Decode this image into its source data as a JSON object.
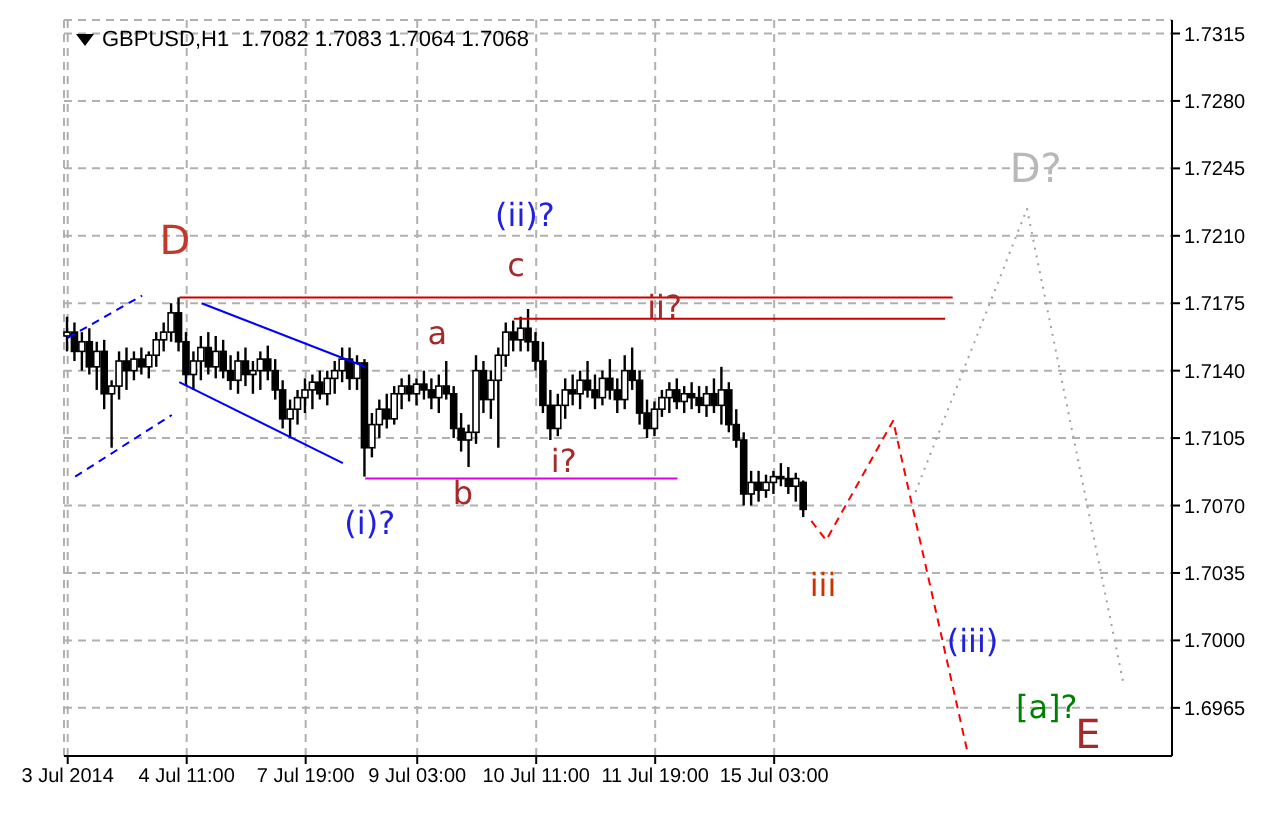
{
  "chart_data": {
    "type": "candlestick",
    "title": "GBPUSD,H1  1.7082 1.7083 1.7064 1.7068",
    "categories": [
      "3 Jul 2014",
      null,
      null,
      null,
      null,
      null,
      null,
      null,
      null,
      null,
      null,
      null,
      null,
      null,
      null,
      null,
      "4 Jul 11:00",
      null,
      null,
      null,
      null,
      null,
      null,
      null,
      null,
      null,
      null,
      null,
      null,
      null,
      null,
      null,
      "7 Jul 19:00",
      null,
      null,
      null,
      null,
      null,
      null,
      null,
      null,
      null,
      null,
      null,
      null,
      null,
      null,
      "9 Jul 03:00",
      null,
      null,
      null,
      null,
      null,
      null,
      null,
      null,
      null,
      null,
      null,
      null,
      null,
      null,
      null,
      "10 Jul 11:00",
      null,
      null,
      null,
      null,
      null,
      null,
      null,
      null,
      null,
      null,
      null,
      null,
      null,
      null,
      null,
      "11 Jul 19:00",
      null,
      null,
      null,
      null,
      null,
      null,
      null,
      null,
      null,
      null,
      null,
      null,
      null,
      null,
      null,
      "15 Jul 03:00",
      null,
      null,
      null,
      null,
      null,
      null,
      null,
      null,
      null,
      null,
      null,
      null,
      null,
      null,
      null,
      null,
      null,
      null,
      null,
      null,
      null,
      null,
      null,
      null,
      null,
      null,
      null,
      null,
      null,
      null,
      null,
      null,
      null,
      null,
      null,
      null,
      null,
      null,
      null,
      null,
      null,
      null,
      null,
      null,
      null,
      null,
      null,
      null,
      null,
      null,
      null,
      null,
      null
    ],
    "ohlc": [
      [
        1.7158,
        1.7168,
        1.715,
        1.716
      ],
      [
        1.716,
        1.7165,
        1.7145,
        1.715
      ],
      [
        1.715,
        1.716,
        1.714,
        1.7155
      ],
      [
        1.7155,
        1.7162,
        1.7138,
        1.7142
      ],
      [
        1.7142,
        1.7155,
        1.713,
        1.715
      ],
      [
        1.715,
        1.7156,
        1.712,
        1.7128
      ],
      [
        1.7128,
        1.7135,
        1.71,
        1.7132
      ],
      [
        1.7132,
        1.715,
        1.7125,
        1.7145
      ],
      [
        1.7145,
        1.7152,
        1.713,
        1.714
      ],
      [
        1.714,
        1.715,
        1.7135,
        1.7146
      ],
      [
        1.7146,
        1.7152,
        1.7138,
        1.7142
      ],
      [
        1.7142,
        1.715,
        1.7136,
        1.7148
      ],
      [
        1.7148,
        1.716,
        1.7142,
        1.7156
      ],
      [
        1.7156,
        1.7165,
        1.715,
        1.716
      ],
      [
        1.716,
        1.7175,
        1.7155,
        1.717
      ],
      [
        1.717,
        1.7178,
        1.715,
        1.7155
      ],
      [
        1.7155,
        1.716,
        1.7132,
        1.7138
      ],
      [
        1.7138,
        1.715,
        1.713,
        1.7145
      ],
      [
        1.7145,
        1.7158,
        1.7135,
        1.7152
      ],
      [
        1.7152,
        1.716,
        1.7138,
        1.7142
      ],
      [
        1.7142,
        1.7158,
        1.7136,
        1.715
      ],
      [
        1.715,
        1.7156,
        1.7136,
        1.714
      ],
      [
        1.714,
        1.7148,
        1.713,
        1.7135
      ],
      [
        1.7135,
        1.715,
        1.7128,
        1.7145
      ],
      [
        1.7145,
        1.7152,
        1.7132,
        1.7138
      ],
      [
        1.7138,
        1.7145,
        1.7128,
        1.714
      ],
      [
        1.714,
        1.715,
        1.713,
        1.7146
      ],
      [
        1.7146,
        1.7153,
        1.7135,
        1.714
      ],
      [
        1.714,
        1.7146,
        1.7125,
        1.713
      ],
      [
        1.713,
        1.7135,
        1.711,
        1.7115
      ],
      [
        1.7115,
        1.7125,
        1.7105,
        1.712
      ],
      [
        1.712,
        1.713,
        1.7112,
        1.7126
      ],
      [
        1.7126,
        1.7136,
        1.7118,
        1.713
      ],
      [
        1.713,
        1.7138,
        1.712,
        1.7134
      ],
      [
        1.7134,
        1.714,
        1.7125,
        1.7128
      ],
      [
        1.7128,
        1.714,
        1.7122,
        1.7136
      ],
      [
        1.7136,
        1.7145,
        1.7128,
        1.714
      ],
      [
        1.714,
        1.7152,
        1.7134,
        1.7146
      ],
      [
        1.7146,
        1.7152,
        1.713,
        1.7136
      ],
      [
        1.7136,
        1.7148,
        1.713,
        1.7144
      ],
      [
        1.7144,
        1.7146,
        1.7085,
        1.71
      ],
      [
        1.71,
        1.7118,
        1.7095,
        1.7112
      ],
      [
        1.7112,
        1.7125,
        1.7105,
        1.712
      ],
      [
        1.712,
        1.7128,
        1.711,
        1.7115
      ],
      [
        1.7115,
        1.7132,
        1.7112,
        1.7128
      ],
      [
        1.7128,
        1.7136,
        1.712,
        1.7132
      ],
      [
        1.7132,
        1.7138,
        1.7124,
        1.7128
      ],
      [
        1.7128,
        1.7136,
        1.7122,
        1.7133
      ],
      [
        1.7133,
        1.714,
        1.7125,
        1.713
      ],
      [
        1.713,
        1.7136,
        1.712,
        1.7126
      ],
      [
        1.7126,
        1.7138,
        1.7118,
        1.7132
      ],
      [
        1.7132,
        1.7145,
        1.7125,
        1.7128
      ],
      [
        1.7128,
        1.7132,
        1.7105,
        1.711
      ],
      [
        1.711,
        1.7118,
        1.7098,
        1.7104
      ],
      [
        1.7104,
        1.7112,
        1.709,
        1.7108
      ],
      [
        1.7108,
        1.7148,
        1.7102,
        1.714
      ],
      [
        1.714,
        1.7145,
        1.7118,
        1.7125
      ],
      [
        1.7125,
        1.714,
        1.7115,
        1.7135
      ],
      [
        1.7135,
        1.7152,
        1.71,
        1.7148
      ],
      [
        1.7148,
        1.7165,
        1.7142,
        1.716
      ],
      [
        1.716,
        1.7166,
        1.715,
        1.7156
      ],
      [
        1.7156,
        1.7168,
        1.715,
        1.7162
      ],
      [
        1.7162,
        1.7172,
        1.715,
        1.7155
      ],
      [
        1.7155,
        1.716,
        1.714,
        1.7145
      ],
      [
        1.7145,
        1.7155,
        1.7118,
        1.7122
      ],
      [
        1.7122,
        1.713,
        1.7104,
        1.711
      ],
      [
        1.711,
        1.7128,
        1.7106,
        1.7122
      ],
      [
        1.7122,
        1.7136,
        1.7115,
        1.713
      ],
      [
        1.713,
        1.7138,
        1.7122,
        1.7128
      ],
      [
        1.7128,
        1.714,
        1.712,
        1.7135
      ],
      [
        1.7135,
        1.7145,
        1.7126,
        1.713
      ],
      [
        1.713,
        1.7138,
        1.712,
        1.7126
      ],
      [
        1.7126,
        1.714,
        1.7122,
        1.7136
      ],
      [
        1.7136,
        1.7146,
        1.7125,
        1.713
      ],
      [
        1.713,
        1.7136,
        1.7118,
        1.7125
      ],
      [
        1.7125,
        1.7148,
        1.712,
        1.714
      ],
      [
        1.714,
        1.7152,
        1.713,
        1.7135
      ],
      [
        1.7135,
        1.714,
        1.7112,
        1.7118
      ],
      [
        1.7118,
        1.7125,
        1.7105,
        1.711
      ],
      [
        1.711,
        1.7124,
        1.7106,
        1.712
      ],
      [
        1.712,
        1.713,
        1.7116,
        1.7126
      ],
      [
        1.7126,
        1.7134,
        1.7118,
        1.713
      ],
      [
        1.713,
        1.7136,
        1.712,
        1.7124
      ],
      [
        1.7124,
        1.7132,
        1.7118,
        1.7128
      ],
      [
        1.7128,
        1.7134,
        1.712,
        1.7126
      ],
      [
        1.7126,
        1.7132,
        1.7118,
        1.7122
      ],
      [
        1.7122,
        1.7132,
        1.7116,
        1.7128
      ],
      [
        1.7128,
        1.7136,
        1.7118,
        1.7122
      ],
      [
        1.7122,
        1.7142,
        1.7112,
        1.713
      ],
      [
        1.713,
        1.7134,
        1.7108,
        1.7112
      ],
      [
        1.7112,
        1.712,
        1.71,
        1.7104
      ],
      [
        1.7104,
        1.7108,
        1.707,
        1.7076
      ],
      [
        1.7076,
        1.7088,
        1.707,
        1.7082
      ],
      [
        1.7082,
        1.7088,
        1.7072,
        1.7078
      ],
      [
        1.7078,
        1.7086,
        1.7074,
        1.7082
      ],
      [
        1.7082,
        1.7088,
        1.7076,
        1.7085
      ],
      [
        1.7085,
        1.7092,
        1.708,
        1.7084
      ],
      [
        1.7084,
        1.709,
        1.7076,
        1.708
      ],
      [
        1.708,
        1.7087,
        1.7072,
        1.7084
      ],
      [
        1.7082,
        1.7083,
        1.7064,
        1.7068
      ],
      null,
      null,
      null,
      null,
      null,
      null,
      null,
      null,
      null,
      null,
      null,
      null,
      null,
      null,
      null,
      null,
      null,
      null,
      null,
      null,
      null,
      null,
      null,
      null,
      null,
      null,
      null,
      null,
      null,
      null,
      null,
      null,
      null,
      null,
      null,
      null,
      null,
      null,
      null,
      null,
      null,
      null,
      null,
      null,
      null,
      null,
      null,
      null,
      null
    ],
    "color": "#000000",
    "series": [
      {
        "type": "line",
        "color": "#cc0000",
        "line_style": "solid",
        "values": [
          null,
          null,
          null,
          null,
          null,
          null,
          null,
          null,
          null,
          null,
          null,
          null,
          null,
          null,
          null,
          1.7178,
          null,
          null,
          null,
          null,
          null,
          null,
          null,
          null,
          null,
          null,
          null,
          null,
          null,
          null,
          null,
          null,
          null,
          null,
          null,
          null,
          null,
          null,
          null,
          null,
          null,
          null,
          null,
          null,
          null,
          null,
          null,
          null,
          null,
          null,
          null,
          null,
          null,
          null,
          null,
          null,
          null,
          null,
          null,
          null,
          null,
          null,
          null,
          null,
          null,
          null,
          null,
          null,
          null,
          null,
          null,
          null,
          null,
          null,
          null,
          null,
          null,
          null,
          null,
          null,
          null,
          null,
          null,
          null,
          null,
          null,
          null,
          null,
          null,
          null,
          null,
          null,
          null,
          null,
          null,
          null,
          null,
          null,
          null,
          null,
          null,
          null,
          null,
          null,
          null,
          null,
          null,
          null,
          null,
          null,
          null,
          null,
          null,
          null,
          null,
          null,
          null,
          null,
          null,
          1.7178,
          null,
          null,
          null,
          null,
          null,
          null,
          null,
          null,
          null,
          null,
          null,
          null,
          null,
          null,
          null,
          null,
          null,
          null,
          null,
          null,
          null,
          null,
          null,
          null,
          null,
          null,
          null,
          null,
          null
        ]
      },
      {
        "type": "line",
        "color": "#cc0000",
        "line_style": "solid",
        "values": [
          null,
          null,
          null,
          null,
          null,
          null,
          null,
          null,
          null,
          null,
          null,
          null,
          null,
          null,
          null,
          null,
          null,
          null,
          null,
          null,
          null,
          null,
          null,
          null,
          null,
          null,
          null,
          null,
          null,
          null,
          null,
          null,
          null,
          null,
          null,
          null,
          null,
          null,
          null,
          null,
          null,
          null,
          null,
          null,
          null,
          null,
          null,
          null,
          null,
          null,
          null,
          null,
          null,
          null,
          null,
          null,
          null,
          null,
          null,
          null,
          1.7167,
          null,
          null,
          null,
          null,
          null,
          null,
          null,
          null,
          null,
          null,
          null,
          null,
          null,
          null,
          null,
          null,
          null,
          null,
          null,
          null,
          null,
          null,
          null,
          null,
          null,
          null,
          null,
          null,
          null,
          null,
          null,
          null,
          null,
          null,
          null,
          null,
          null,
          null,
          null,
          null,
          null,
          null,
          null,
          null,
          null,
          null,
          null,
          null,
          null,
          null,
          null,
          null,
          null,
          null,
          null,
          null,
          null,
          1.7167,
          null,
          null,
          null,
          null,
          null,
          null,
          null,
          null,
          null,
          null,
          null,
          null,
          null,
          null,
          null,
          null,
          null,
          null,
          null,
          null,
          null,
          null,
          null,
          null,
          null,
          null,
          null,
          null,
          null,
          null
        ]
      },
      {
        "type": "line",
        "color": "#e000e0",
        "line_style": "solid",
        "values": [
          null,
          null,
          null,
          null,
          null,
          null,
          null,
          null,
          null,
          null,
          null,
          null,
          null,
          null,
          null,
          null,
          null,
          null,
          null,
          null,
          null,
          null,
          null,
          null,
          null,
          null,
          null,
          null,
          null,
          null,
          null,
          null,
          null,
          null,
          null,
          null,
          null,
          null,
          null,
          null,
          1.7084,
          null,
          null,
          null,
          null,
          null,
          null,
          null,
          null,
          null,
          null,
          null,
          null,
          null,
          null,
          null,
          null,
          null,
          null,
          null,
          null,
          null,
          null,
          null,
          null,
          null,
          null,
          null,
          null,
          null,
          null,
          null,
          null,
          null,
          null,
          null,
          null,
          null,
          null,
          null,
          null,
          null,
          1.7084,
          null,
          null,
          null,
          null,
          null,
          null,
          null,
          null,
          null,
          null,
          null,
          null,
          null,
          null,
          null,
          null,
          null,
          null,
          null,
          null,
          null,
          null,
          null,
          null,
          null,
          null,
          null,
          null,
          null,
          null,
          null,
          null,
          null,
          null,
          null,
          null,
          null,
          null,
          null,
          null,
          null,
          null,
          null,
          null,
          null,
          null,
          null,
          null,
          null,
          null,
          null,
          null,
          null,
          null,
          null,
          null,
          null,
          null,
          null,
          null,
          null,
          null,
          null,
          null,
          null,
          null
        ]
      },
      {
        "type": "line",
        "color": "#0000ff",
        "line_style": "solid",
        "values": [
          null,
          null,
          null,
          null,
          null,
          null,
          null,
          null,
          null,
          null,
          null,
          null,
          null,
          null,
          null,
          null,
          null,
          null,
          1.7175,
          null,
          null,
          null,
          null,
          null,
          null,
          null,
          null,
          null,
          null,
          null,
          null,
          null,
          null,
          null,
          null,
          null,
          null,
          null,
          null,
          null,
          1.7142,
          null,
          null,
          null,
          null,
          null,
          null,
          null,
          null,
          null,
          null,
          null,
          null,
          null,
          null,
          null,
          null,
          null,
          null,
          null,
          null,
          null,
          null,
          null,
          null,
          null,
          null,
          null,
          null,
          null,
          null,
          null,
          null,
          null,
          null,
          null,
          null,
          null,
          null,
          null,
          null,
          null,
          null,
          null,
          null,
          null,
          null,
          null,
          null,
          null,
          null,
          null,
          null,
          null,
          null,
          null,
          null,
          null,
          null,
          null,
          null,
          null,
          null,
          null,
          null,
          null,
          null,
          null,
          null,
          null,
          null,
          null,
          null,
          null,
          null,
          null,
          null,
          null,
          null,
          null,
          null,
          null,
          null,
          null,
          null,
          null,
          null,
          null,
          null,
          null,
          null,
          null,
          null,
          null,
          null,
          null,
          null,
          null,
          null,
          null,
          null,
          null,
          null,
          null,
          null,
          null,
          null,
          null,
          null
        ]
      },
      {
        "type": "line",
        "color": "#0000ff",
        "line_style": "solid",
        "values": [
          null,
          null,
          null,
          null,
          null,
          null,
          null,
          null,
          null,
          null,
          null,
          null,
          null,
          null,
          null,
          1.7134,
          null,
          null,
          null,
          null,
          null,
          null,
          null,
          null,
          null,
          null,
          null,
          null,
          null,
          null,
          null,
          null,
          null,
          null,
          null,
          null,
          null,
          1.7092,
          null,
          null,
          null,
          null,
          null,
          null,
          null,
          null,
          null,
          null,
          null,
          null,
          null,
          null,
          null,
          null,
          null,
          null,
          null,
          null,
          null,
          null,
          null,
          null,
          null,
          null,
          null,
          null,
          null,
          null,
          null,
          null,
          null,
          null,
          null,
          null,
          null,
          null,
          null,
          null,
          null,
          null,
          null,
          null,
          null,
          null,
          null,
          null,
          null,
          null,
          null,
          null,
          null,
          null,
          null,
          null,
          null,
          null,
          null,
          null,
          null,
          null,
          null,
          null,
          null,
          null,
          null,
          null,
          null,
          null,
          null,
          null,
          null,
          null,
          null,
          null,
          null,
          null,
          null,
          null,
          null,
          null,
          null,
          null,
          null,
          null,
          null,
          null,
          null,
          null,
          null,
          null,
          null,
          null,
          null,
          null,
          null,
          null,
          null,
          null,
          null,
          null,
          null,
          null,
          null,
          null,
          null,
          null,
          null,
          null,
          null
        ]
      },
      {
        "type": "line",
        "color": "#0000ff",
        "line_style": "dashed",
        "values": [
          1.7157,
          null,
          null,
          null,
          null,
          null,
          null,
          null,
          null,
          null,
          1.7179,
          null,
          null,
          null,
          null,
          null,
          null,
          null,
          null,
          null,
          null,
          null,
          null,
          null,
          null,
          null,
          null,
          null,
          null,
          null,
          null,
          null,
          null,
          null,
          null,
          null,
          null,
          null,
          null,
          null,
          null,
          null,
          null,
          null,
          null,
          null,
          null,
          null,
          null,
          null,
          null,
          null,
          null,
          null,
          null,
          null,
          null,
          null,
          null,
          null,
          null,
          null,
          null,
          null,
          null,
          null,
          null,
          null,
          null,
          null,
          null,
          null,
          null,
          null,
          null,
          null,
          null,
          null,
          null,
          null,
          null,
          null,
          null,
          null,
          null,
          null,
          null,
          null,
          null,
          null,
          null,
          null,
          null,
          null,
          null,
          null,
          null,
          null,
          null,
          null,
          null,
          null,
          null,
          null,
          null,
          null,
          null,
          null,
          null,
          null,
          null,
          null,
          null,
          null,
          null,
          null,
          null,
          null,
          null,
          null,
          null,
          null,
          null,
          null,
          null,
          null,
          null,
          null,
          null,
          null,
          null,
          null,
          null,
          null,
          null,
          null,
          null,
          null,
          null,
          null,
          null,
          null,
          null,
          null,
          null,
          null,
          null,
          null,
          null
        ]
      },
      {
        "type": "line",
        "color": "#0000ff",
        "line_style": "dashed",
        "values": [
          null,
          1.7085,
          null,
          null,
          null,
          null,
          null,
          null,
          null,
          null,
          null,
          null,
          null,
          null,
          1.7117,
          null,
          null,
          null,
          null,
          null,
          null,
          null,
          null,
          null,
          null,
          null,
          null,
          null,
          null,
          null,
          null,
          null,
          null,
          null,
          null,
          null,
          null,
          null,
          null,
          null,
          null,
          null,
          null,
          null,
          null,
          null,
          null,
          null,
          null,
          null,
          null,
          null,
          null,
          null,
          null,
          null,
          null,
          null,
          null,
          null,
          null,
          null,
          null,
          null,
          null,
          null,
          null,
          null,
          null,
          null,
          null,
          null,
          null,
          null,
          null,
          null,
          null,
          null,
          null,
          null,
          null,
          null,
          null,
          null,
          null,
          null,
          null,
          null,
          null,
          null,
          null,
          null,
          null,
          null,
          null,
          null,
          null,
          null,
          null,
          null,
          null,
          null,
          null,
          null,
          null,
          null,
          null,
          null,
          null,
          null,
          null,
          null,
          null,
          null,
          null,
          null,
          null,
          null,
          null,
          null,
          null,
          null,
          null,
          null,
          null,
          null,
          null,
          null,
          null,
          null,
          null,
          null,
          null,
          null,
          null,
          null,
          null,
          null,
          null,
          null,
          null,
          null,
          null,
          null,
          null,
          null,
          null,
          null,
          null
        ]
      },
      {
        "type": "line",
        "color": "#ff0000",
        "line_style": "dashed",
        "values": [
          null,
          null,
          null,
          null,
          null,
          null,
          null,
          null,
          null,
          null,
          null,
          null,
          null,
          null,
          null,
          null,
          null,
          null,
          null,
          null,
          null,
          null,
          null,
          null,
          null,
          null,
          null,
          null,
          null,
          null,
          null,
          null,
          null,
          null,
          null,
          null,
          null,
          null,
          null,
          null,
          null,
          null,
          null,
          null,
          null,
          null,
          null,
          null,
          null,
          null,
          null,
          null,
          null,
          null,
          null,
          null,
          null,
          null,
          null,
          null,
          null,
          null,
          null,
          null,
          null,
          null,
          null,
          null,
          null,
          null,
          null,
          null,
          null,
          null,
          null,
          null,
          null,
          null,
          null,
          null,
          null,
          null,
          null,
          null,
          null,
          null,
          null,
          null,
          null,
          null,
          null,
          null,
          null,
          null,
          null,
          null,
          null,
          null,
          null,
          null,
          1.7062,
          null,
          1.7052,
          null,
          null,
          null,
          null,
          null,
          null,
          null,
          null,
          1.7114,
          null,
          null,
          null,
          null,
          null,
          null,
          null,
          null,
          null,
          1.6942,
          null,
          null,
          null,
          null,
          null,
          null,
          null,
          null,
          null,
          null,
          null,
          null,
          null,
          null,
          null,
          null,
          null,
          null,
          null,
          null,
          null,
          null,
          null,
          null,
          null,
          null,
          null
        ]
      },
      {
        "type": "line",
        "color": "#a0a0a0",
        "line_style": "dotted",
        "values": [
          null,
          null,
          null,
          null,
          null,
          null,
          null,
          null,
          null,
          null,
          null,
          null,
          null,
          null,
          null,
          null,
          null,
          null,
          null,
          null,
          null,
          null,
          null,
          null,
          null,
          null,
          null,
          null,
          null,
          null,
          null,
          null,
          null,
          null,
          null,
          null,
          null,
          null,
          null,
          null,
          null,
          null,
          null,
          null,
          null,
          null,
          null,
          null,
          null,
          null,
          null,
          null,
          null,
          null,
          null,
          null,
          null,
          null,
          null,
          null,
          null,
          null,
          null,
          null,
          null,
          null,
          null,
          null,
          null,
          null,
          null,
          null,
          null,
          null,
          null,
          null,
          null,
          null,
          null,
          null,
          null,
          null,
          null,
          null,
          null,
          null,
          null,
          null,
          null,
          null,
          null,
          null,
          null,
          null,
          null,
          null,
          null,
          null,
          null,
          null,
          null,
          null,
          null,
          null,
          null,
          null,
          null,
          null,
          null,
          null,
          null,
          null,
          null,
          null,
          1.7077,
          null,
          null,
          null,
          null,
          null,
          null,
          null,
          null,
          null,
          null,
          null,
          null,
          null,
          null,
          1.7224,
          null,
          null,
          null,
          null,
          null,
          null,
          null,
          null,
          null,
          null,
          null,
          null,
          1.6977,
          null,
          null,
          null,
          null,
          null,
          null
        ]
      }
    ],
    "annotations": [
      "D",
      "(ii)?",
      "c",
      "a",
      "ii?",
      "b",
      "i?",
      "(i)?",
      "iii",
      "(iii)",
      "[a]?",
      "D?",
      "E"
    ],
    "ylim": [
      1.694,
      1.7322
    ],
    "yticks": [
      {
        "value": 1.6965,
        "label": "1.6965"
      },
      {
        "value": 1.7,
        "label": "1.7000"
      },
      {
        "value": 1.7035,
        "label": "1.7035"
      },
      {
        "value": 1.707,
        "label": "1.7070"
      },
      {
        "value": 1.7105,
        "label": "1.7105"
      },
      {
        "value": 1.714,
        "label": "1.7140"
      },
      {
        "value": 1.7175,
        "label": "1.7175"
      },
      {
        "value": 1.721,
        "label": "1.7210"
      },
      {
        "value": 1.7245,
        "label": "1.7245"
      },
      {
        "value": 1.728,
        "label": "1.7280"
      },
      {
        "value": 1.7315,
        "label": "1.7315"
      }
    ],
    "grid": true
  }
}
